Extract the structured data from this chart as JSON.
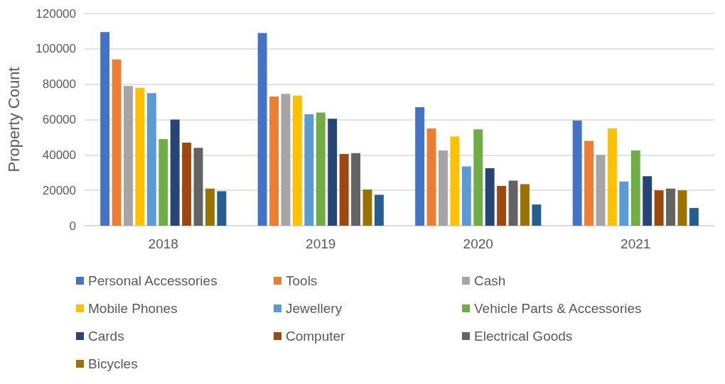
{
  "chart_data": {
    "type": "bar",
    "ylabel": "Property Count",
    "categories": [
      "2018",
      "2019",
      "2020",
      "2021"
    ],
    "series": [
      {
        "name": "Personal Accessories",
        "color": "#4472c4",
        "values": [
          109500,
          109000,
          67000,
          59500
        ]
      },
      {
        "name": "Tools",
        "color": "#ed7d31",
        "values": [
          94000,
          73000,
          55000,
          48000
        ]
      },
      {
        "name": "Cash",
        "color": "#a5a5a5",
        "values": [
          79000,
          74500,
          42500,
          40000
        ]
      },
      {
        "name": "Mobile Phones",
        "color": "#ffc000",
        "values": [
          78000,
          73500,
          50500,
          55000
        ]
      },
      {
        "name": "Jewellery",
        "color": "#5b9bd5",
        "values": [
          75000,
          63000,
          33500,
          25000
        ]
      },
      {
        "name": "Vehicle Parts & Accessories",
        "color": "#70ad47",
        "values": [
          49000,
          64000,
          54500,
          42500
        ]
      },
      {
        "name": "Cards",
        "color": "#264478",
        "values": [
          60000,
          60500,
          32500,
          28000
        ]
      },
      {
        "name": "Computer",
        "color": "#9e480e",
        "values": [
          47000,
          40500,
          22500,
          20000
        ]
      },
      {
        "name": "Electrical Goods",
        "color": "#636363",
        "values": [
          44000,
          41000,
          25500,
          21000
        ]
      },
      {
        "name": "Bicycles",
        "color": "#997300",
        "values": [
          21000,
          20500,
          23500,
          20000
        ]
      },
      {
        "color": "#255e91",
        "values": [
          19500,
          17500,
          12000,
          10000
        ]
      }
    ],
    "ylim": [
      0,
      120000
    ],
    "yticks": [
      0,
      20000,
      40000,
      60000,
      80000,
      100000,
      120000
    ],
    "grid": "y",
    "legend": "bottom"
  }
}
